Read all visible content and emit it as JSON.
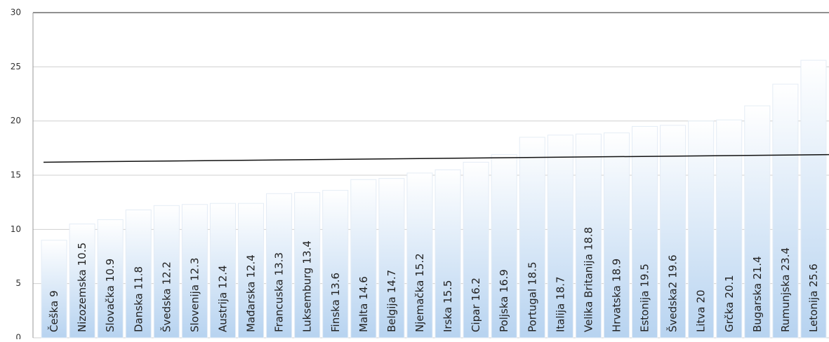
{
  "chart_data": {
    "type": "bar",
    "categories": [
      "Češka",
      "Nizozemska",
      "Slovačka",
      "Danska",
      "Švedska",
      "Slovenija",
      "Austrija",
      "Mađarska",
      "Francuska",
      "Luksemburg",
      "Finska",
      "Malta",
      "Belgija",
      "Njemačka",
      "Irska",
      "Cipar",
      "Poljska",
      "Portugal",
      "Italija",
      "Velika Britanija",
      "Hrvatska",
      "Estonija",
      "Švedska2",
      "Litva",
      "Grčka",
      "Bugarska",
      "Rumunjska",
      "Letonija"
    ],
    "values": [
      9,
      10.5,
      10.9,
      11.8,
      12.2,
      12.3,
      12.4,
      12.4,
      13.3,
      13.4,
      13.6,
      14.6,
      14.7,
      15.2,
      15.5,
      16.2,
      16.9,
      18.5,
      18.7,
      18.8,
      18.9,
      19.5,
      19.6,
      20,
      20.1,
      21.4,
      23.4,
      25.6
    ],
    "color": "#b7d3f0",
    "trend_line": [
      16.2,
      16.9
    ],
    "ylim": [
      0,
      30
    ],
    "yticks": [
      0,
      5,
      10,
      15,
      20,
      25,
      30
    ],
    "grid": true
  }
}
